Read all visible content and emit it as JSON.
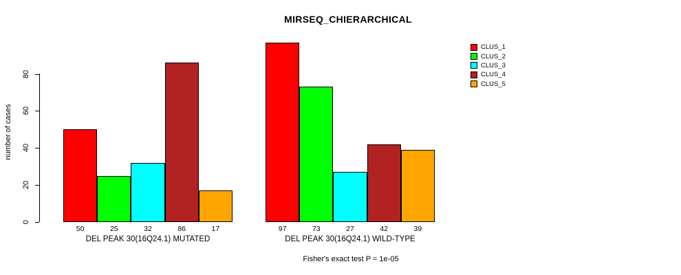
{
  "title": "MIRSEQ_CHIERARCHICAL",
  "chart_data": {
    "type": "bar",
    "title": "MIRSEQ_CHIERARCHICAL",
    "ylabel": "number of cases",
    "xlabel": "",
    "yticks": [
      0,
      20,
      40,
      60,
      80
    ],
    "ylim": [
      0,
      100
    ],
    "grid": false,
    "legend_position": "right",
    "series_names": [
      "CLUS_1",
      "CLUS_2",
      "CLUS_3",
      "CLUS_4",
      "CLUS_5"
    ],
    "colors": [
      "#FF0000",
      "#00FF00",
      "#00FFFF",
      "#B22222",
      "#FFA500"
    ],
    "groups": [
      {
        "label": "DEL PEAK 30(16Q24.1) MUTATED",
        "values": [
          50,
          25,
          32,
          86,
          17
        ]
      },
      {
        "label": "DEL PEAK 30(16Q24.1) WILD-TYPE",
        "values": [
          97,
          73,
          27,
          42,
          39
        ]
      }
    ],
    "bar_value_labels": [
      [
        50,
        25,
        32,
        86,
        17
      ],
      [
        97,
        73,
        27,
        42,
        39
      ]
    ],
    "footnote": "Fisher's exact test P = 1e-05"
  }
}
